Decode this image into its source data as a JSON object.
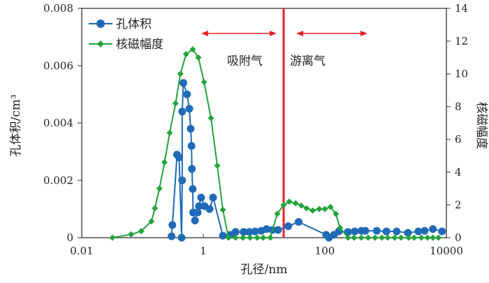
{
  "chart_data": {
    "type": "line",
    "xlabel": "孔径/nm",
    "ylabel_left": "孔体积/cm³",
    "ylabel_right": "核磁幅度",
    "x_scale": "log",
    "xlim": [
      0.01,
      10000
    ],
    "ylim_left": [
      0,
      0.008
    ],
    "ylim_right": [
      0,
      14
    ],
    "x_ticks": [
      "0.01",
      "1",
      "100",
      "10000"
    ],
    "y_ticks_left": [
      "0",
      "0.002",
      "0.004",
      "0.006",
      "0.008"
    ],
    "y_ticks_right": [
      "0",
      "2",
      "4",
      "6",
      "8",
      "10",
      "12",
      "14"
    ],
    "legend_placement": "top-left",
    "grid": false,
    "boundary_line": {
      "x": 21,
      "color": "#e8202a"
    },
    "annotations": [
      {
        "text": "吸附气",
        "arrow": "both"
      },
      {
        "text": "游离气",
        "arrow": "both"
      }
    ],
    "series": [
      {
        "name": "孔体积",
        "axis": "left",
        "color": "#1f6bb8",
        "marker": "circle",
        "x": [
          0.3,
          0.31,
          0.37,
          0.4,
          0.44,
          0.45,
          0.45,
          0.47,
          0.54,
          0.59,
          0.62,
          0.64,
          0.65,
          0.67,
          0.68,
          0.73,
          0.81,
          0.85,
          0.92,
          1.05,
          1.27,
          1.45,
          2.1,
          2.8,
          3.4,
          4.6,
          5.7,
          7.1,
          9.0,
          11,
          13.7,
          17,
          25,
          37,
          105,
          117,
          141,
          170,
          240,
          310,
          400,
          465,
          715,
          1030,
          1520,
          2330,
          3460,
          4380,
          6000,
          8500
        ],
        "y": [
          5e-05,
          0.00044,
          0.0029,
          0.0028,
          0,
          0.002,
          0.0044,
          0.0054,
          0.005,
          0.0045,
          0.0038,
          0.0032,
          0.0024,
          0.0017,
          0.00088,
          0.0006,
          0.00088,
          0.0011,
          0.0014,
          0.0011,
          0.001,
          0.0014,
          7e-05,
          0.0001,
          0.0002,
          0.0002,
          0.0002,
          0.00022,
          0.00024,
          0.0003,
          0.00027,
          0.00027,
          0.0004,
          0.00055,
          0.0001,
          0,
          0.0001,
          0.00022,
          0.0002,
          0.00022,
          0.00024,
          0.00024,
          0.00024,
          0.00022,
          0.00022,
          0.00017,
          0.00022,
          0.00024,
          0.0003,
          0.00022
        ]
      },
      {
        "name": "核磁幅度",
        "axis": "right",
        "color": "#22a33a",
        "marker": "diamond",
        "x": [
          0.032,
          0.065,
          0.095,
          0.14,
          0.16,
          0.19,
          0.23,
          0.28,
          0.35,
          0.42,
          0.52,
          0.67,
          0.83,
          1.03,
          1.34,
          1.7,
          2.1,
          2.6,
          3.4,
          4.5,
          5.9,
          7.7,
          9.7,
          12.7,
          16.5,
          21,
          26,
          33,
          41,
          50,
          63,
          81,
          100,
          124,
          152,
          178,
          240,
          302,
          398,
          515,
          670,
          870,
          1080,
          1410,
          1790,
          2400,
          2950,
          3860,
          4900,
          6000,
          7400
        ],
        "y": [
          0,
          0.2,
          0.4,
          1.0,
          1.8,
          3.0,
          4.6,
          6.4,
          8.2,
          10.0,
          11.2,
          11.5,
          11.0,
          9.5,
          7.3,
          4.4,
          1.7,
          0,
          0,
          0,
          0,
          0,
          0,
          0,
          1.46,
          2.0,
          2.2,
          2.1,
          1.96,
          1.8,
          1.66,
          1.75,
          1.75,
          1.88,
          1.45,
          0.6,
          0,
          0,
          0,
          0,
          0,
          0,
          0,
          0,
          0,
          0,
          0,
          0,
          0,
          0,
          0
        ]
      }
    ]
  }
}
